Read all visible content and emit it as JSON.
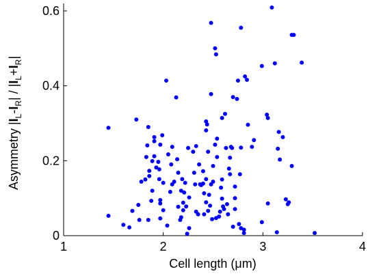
{
  "chart_data": {
    "type": "scatter",
    "xlabel": "Cell length (μm)",
    "ylabel_parts": [
      "Asymmetry |",
      "I",
      "L",
      "-",
      "I",
      "R",
      "| / |",
      "I",
      "L",
      "+",
      "I",
      "R",
      "|"
    ],
    "color": "#0000ff",
    "xlim": [
      1,
      4
    ],
    "xticks": [
      1,
      2,
      3,
      4
    ],
    "ylim": [
      0,
      0.62
    ],
    "yticks": [
      0,
      0.2,
      0.4,
      0.6
    ],
    "x": [
      1.45,
      1.45,
      1.6,
      1.66,
      1.69,
      1.73,
      1.75,
      1.78,
      1.76,
      1.82,
      1.83,
      1.84,
      1.85,
      1.86,
      1.86,
      1.85,
      1.88,
      1.89,
      1.89,
      1.91,
      1.91,
      1.91,
      1.93,
      1.95,
      1.97,
      1.96,
      1.96,
      1.97,
      1.97,
      1.97,
      1.99,
      2.0,
      2.0,
      2.03,
      2.05,
      2.04,
      2.08,
      2.07,
      2.09,
      2.09,
      2.11,
      2.13,
      2.14,
      2.15,
      2.15,
      2.17,
      2.18,
      2.18,
      2.19,
      2.2,
      2.2,
      2.21,
      2.23,
      2.22,
      2.24,
      2.25,
      2.26,
      2.26,
      2.3,
      2.31,
      2.32,
      2.33,
      2.33,
      2.35,
      2.36,
      2.37,
      2.38,
      2.4,
      2.4,
      2.41,
      2.41,
      2.43,
      2.43,
      2.43,
      2.43,
      2.44,
      2.45,
      2.45,
      2.46,
      2.47,
      2.48,
      2.48,
      2.48,
      2.49,
      2.5,
      2.5,
      2.52,
      2.52,
      2.53,
      2.53,
      2.54,
      2.54,
      2.56,
      2.57,
      2.58,
      2.59,
      2.59,
      2.59,
      2.6,
      2.61,
      2.62,
      2.63,
      2.64,
      2.65,
      2.66,
      2.67,
      2.67,
      2.68,
      2.69,
      2.7,
      2.7,
      2.72,
      2.72,
      2.72,
      2.74,
      2.75,
      2.76,
      2.77,
      2.78,
      2.78,
      2.78,
      2.81,
      2.81,
      2.82,
      2.84,
      2.85,
      2.89,
      2.91,
      2.99,
      2.99,
      3.04,
      3.05,
      3.05,
      3.09,
      3.12,
      3.14,
      3.15,
      3.16,
      3.17,
      3.2,
      3.23,
      3.25,
      3.26,
      3.29,
      3.31,
      3.29,
      3.39,
      3.52
    ],
    "y": [
      0.288,
      0.053,
      0.029,
      0.022,
      0.066,
      0.31,
      0.082,
      0.144,
      0.042,
      0.15,
      0.21,
      0.241,
      0.29,
      0.173,
      0.159,
      0.042,
      0.093,
      0.199,
      0.12,
      0.252,
      0.212,
      0.263,
      0.182,
      0.197,
      0.243,
      0.177,
      0.151,
      0.095,
      0.086,
      0.046,
      0.268,
      0.141,
      0.068,
      0.414,
      0.217,
      0.027,
      0.19,
      0.117,
      0.237,
      0.137,
      0.144,
      0.369,
      0.204,
      0.168,
      0.077,
      0.042,
      0.049,
      0.12,
      0.151,
      0.088,
      0.068,
      0.115,
      0.078,
      0.141,
      0.005,
      0.234,
      0.02,
      0.102,
      0.224,
      0.168,
      0.137,
      0.239,
      0.064,
      0.057,
      0.19,
      0.137,
      0.135,
      0.139,
      0.172,
      0.113,
      0.057,
      0.089,
      0.151,
      0.281,
      0.305,
      0.297,
      0.066,
      0.224,
      0.109,
      0.08,
      0.378,
      0.568,
      0.137,
      0.044,
      0.144,
      0.186,
      0.5,
      0.243,
      0.484,
      0.047,
      0.259,
      0.21,
      0.051,
      0.064,
      0.128,
      0.15,
      0.099,
      0.314,
      0.078,
      0.071,
      0.325,
      0.234,
      0.084,
      0.057,
      0.179,
      0.164,
      0.208,
      0.237,
      0.234,
      0.024,
      0.37,
      0.071,
      0.131,
      0.1,
      0.365,
      0.414,
      0.031,
      0.164,
      0.555,
      0.02,
      0.235,
      0.016,
      0.007,
      0.425,
      0.416,
      0.296,
      0.237,
      0.255,
      0.036,
      0.453,
      0.323,
      0.314,
      0.086,
      0.609,
      0.46,
      0.009,
      0.232,
      0.277,
      0.203,
      0.263,
      0.097,
      0.084,
      0.089,
      0.536,
      0.536,
      0.186,
      0.462,
      0.007
    ]
  }
}
